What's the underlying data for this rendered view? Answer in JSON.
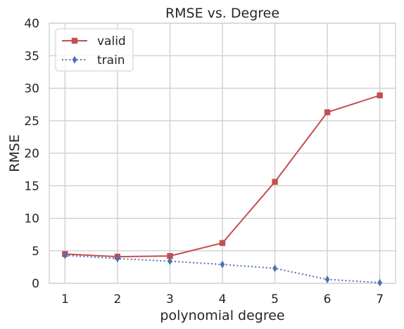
{
  "chart_data": {
    "type": "line",
    "title": "RMSE vs. Degree",
    "xlabel": "polynomial degree",
    "ylabel": "RMSE",
    "x": [
      1,
      2,
      3,
      4,
      5,
      6,
      7
    ],
    "xlim": [
      0.7,
      7.3
    ],
    "ylim": [
      0,
      40
    ],
    "xticks": [
      1,
      2,
      3,
      4,
      5,
      6,
      7
    ],
    "yticks": [
      0,
      5,
      10,
      15,
      20,
      25,
      30,
      35,
      40
    ],
    "grid": true,
    "legend_position": "top-left",
    "series": [
      {
        "name": "valid",
        "values": [
          4.5,
          4.1,
          4.2,
          6.2,
          15.6,
          26.3,
          28.9
        ],
        "color": "#c44e52",
        "marker": "square",
        "line_style": "solid"
      },
      {
        "name": "train",
        "values": [
          4.3,
          3.8,
          3.4,
          2.9,
          2.3,
          0.6,
          0.1
        ],
        "color": "#4c72b0",
        "marker": "diamond",
        "line_style": "dotted"
      }
    ]
  }
}
